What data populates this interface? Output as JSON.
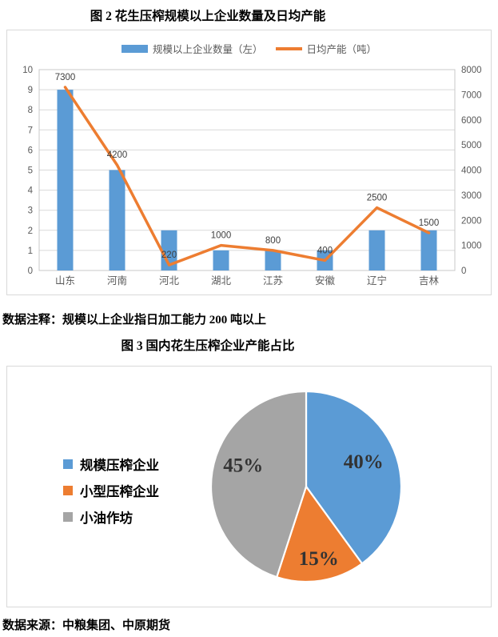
{
  "texts": {
    "note": "数据注释：规模以上企业指日加工能力 200 吨以上",
    "source": "数据来源：中粮集团、中原期货"
  },
  "chart_data": [
    {
      "type": "combo",
      "title": "图 2 花生压榨规模以上企业数量及日均产能",
      "categories": [
        "山东",
        "河南",
        "河北",
        "湖北",
        "江苏",
        "安徽",
        "辽宁",
        "吉林"
      ],
      "series": [
        {
          "name": "规模以上企业数量（左）",
          "type": "bar",
          "axis": "left",
          "color": "#5B9BD5",
          "values": [
            9,
            5,
            2,
            1,
            1,
            1,
            2,
            2
          ]
        },
        {
          "name": "日均产能（吨）",
          "type": "line",
          "axis": "right",
          "color": "#ED7D31",
          "values": [
            7300,
            4200,
            220,
            1000,
            800,
            400,
            2500,
            1500
          ]
        }
      ],
      "left_axis": {
        "min": 0,
        "max": 10,
        "step": 1
      },
      "right_axis": {
        "min": 0,
        "max": 8000,
        "step": 1000
      },
      "grid": true,
      "legend_position": "top"
    },
    {
      "type": "pie",
      "title": "图 3 国内花生压榨企业产能占比",
      "labels": [
        "规模压榨企业",
        "小型压榨企业",
        "小油作坊"
      ],
      "values": [
        40,
        15,
        45
      ],
      "data_labels": [
        "40%",
        "15%",
        "45%"
      ],
      "colors": [
        "#5B9BD5",
        "#ED7D31",
        "#A5A5A5"
      ],
      "start_angle_deg": 0,
      "direction": "clockwise",
      "legend_position": "left"
    }
  ]
}
